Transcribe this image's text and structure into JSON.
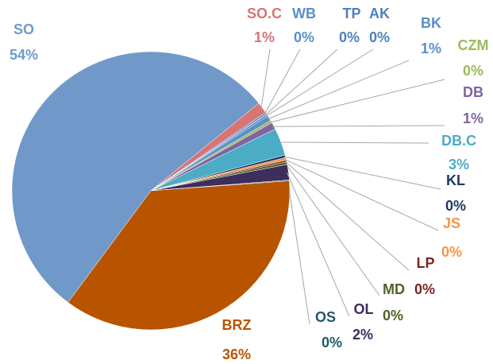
{
  "chart_data": {
    "type": "pie",
    "categories": [
      "SO.C",
      "WB",
      "TP",
      "AK",
      "BK",
      "CZM",
      "DB",
      "DB.C",
      "KL",
      "JS",
      "LP",
      "MD",
      "OL",
      "OS",
      "BRZ",
      "SO"
    ],
    "values": [
      1.3,
      0.2,
      0.1,
      0.2,
      0.6,
      0.3,
      0.8,
      3.2,
      0.3,
      0.3,
      0.2,
      0.3,
      1.8,
      0.1,
      36.3,
      54.0
    ],
    "value_labels": [
      "1%",
      "0%",
      "0%",
      "0%",
      "1%",
      "0%",
      "1%",
      "3%",
      "0%",
      "0%",
      "0%",
      "0%",
      "2%",
      "0%",
      "36%",
      "54%"
    ],
    "colors": [
      "#d87474",
      "#5b8fc8",
      "#4f81bd",
      "#4f81bd",
      "#5b8fc8",
      "#9bbb59",
      "#8064a2",
      "#4bacc6",
      "#1f3864",
      "#f79646",
      "#7b2525",
      "#4f6228",
      "#3d2e5b",
      "#215868",
      "#b85400",
      "#7099c9"
    ]
  }
}
